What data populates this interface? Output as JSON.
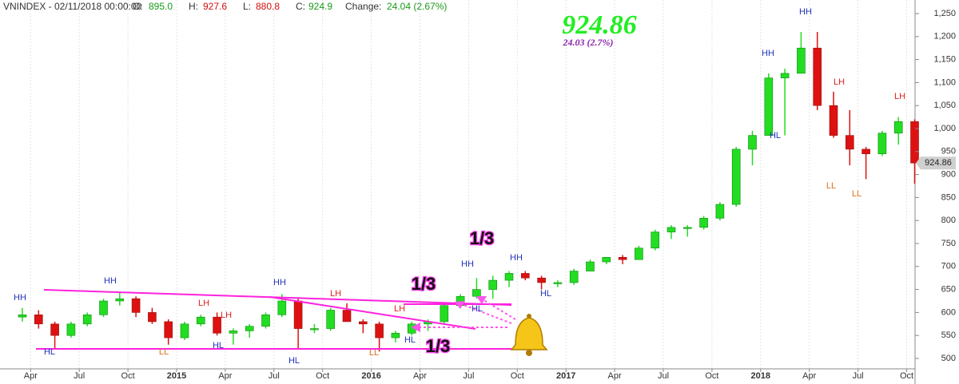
{
  "header": {
    "symbol": "VNINDEX - 02/11/2018 00:00:00",
    "o_label": "O:",
    "o": "895.0",
    "h_label": "H:",
    "h": "927.6",
    "l_label": "L:",
    "l": "880.8",
    "c_label": "C:",
    "c": "924.9",
    "change_label": "Change:",
    "change": "24.04 (2.67%)"
  },
  "quote": {
    "change": "24.03  (2.7%)"
  },
  "annotations": [
    {
      "text": "HH"
    },
    {
      "text": "HL"
    },
    {
      "text": "HH"
    },
    {
      "text": "LL"
    },
    {
      "text": "LH"
    },
    {
      "text": "LH"
    },
    {
      "text": "HL"
    },
    {
      "text": "HH"
    },
    {
      "text": "HL"
    },
    {
      "text": "LH"
    },
    {
      "text": "LL"
    },
    {
      "text": "LH"
    },
    {
      "text": "HL"
    },
    {
      "text": "HH"
    },
    {
      "text": "HH"
    },
    {
      "text": "HL"
    },
    {
      "text": "HL"
    },
    {
      "text": "HH"
    },
    {
      "text": "HH"
    },
    {
      "text": "HL"
    },
    {
      "text": "LH"
    },
    {
      "text": "LH"
    },
    {
      "text": "LL"
    },
    {
      "text": "LL"
    },
    {
      "text": "1/3"
    },
    {
      "text": "1/3"
    },
    {
      "text": "1/3"
    }
  ],
  "chart_data": {
    "type": "candlestick",
    "up_color": "#22dd22",
    "down_color": "#dd1111",
    "grid": true,
    "price_tag": 924.86,
    "categories": [
      null,
      "Apr",
      null,
      null,
      "Jul",
      null,
      null,
      "Oct",
      null,
      null,
      "2015",
      null,
      null,
      "Apr",
      null,
      null,
      "Jul",
      null,
      null,
      "Oct",
      null,
      null,
      "2016",
      null,
      null,
      "Apr",
      null,
      null,
      "Jul",
      null,
      null,
      "Oct",
      null,
      null,
      "2017",
      null,
      null,
      "Apr",
      null,
      null,
      "Jul",
      null,
      null,
      "Oct",
      null,
      null,
      "2018",
      null,
      null,
      "Apr",
      null,
      null,
      "Jul",
      null,
      null,
      "Oct"
    ],
    "open": [
      590,
      595,
      575,
      550,
      575,
      595,
      625,
      630,
      600,
      580,
      545,
      575,
      590,
      555,
      560,
      570,
      595,
      625,
      565,
      565,
      605,
      580,
      575,
      545,
      555,
      575,
      580,
      615,
      635,
      650,
      670,
      685,
      675,
      665,
      665,
      690,
      710,
      720,
      715,
      740,
      775,
      785,
      785,
      805,
      835,
      955,
      985,
      1110,
      1120,
      1175,
      1050,
      985,
      955,
      945,
      990,
      1015
    ],
    "high": [
      610,
      605,
      580,
      580,
      600,
      630,
      645,
      635,
      610,
      585,
      580,
      595,
      600,
      565,
      575,
      600,
      640,
      630,
      575,
      610,
      620,
      585,
      580,
      560,
      580,
      585,
      620,
      640,
      675,
      680,
      690,
      690,
      680,
      670,
      695,
      715,
      720,
      725,
      745,
      780,
      790,
      790,
      810,
      840,
      960,
      995,
      1120,
      1130,
      1210,
      1210,
      1080,
      1040,
      960,
      995,
      1025,
      1020
    ],
    "low": [
      580,
      565,
      520,
      545,
      570,
      590,
      615,
      590,
      575,
      530,
      540,
      570,
      550,
      530,
      545,
      565,
      590,
      520,
      555,
      560,
      580,
      555,
      515,
      535,
      550,
      560,
      575,
      610,
      630,
      630,
      655,
      670,
      650,
      655,
      660,
      690,
      705,
      705,
      715,
      735,
      760,
      765,
      780,
      800,
      830,
      920,
      985,
      985,
      1120,
      1040,
      980,
      920,
      890,
      940,
      965,
      880
    ],
    "close": [
      595,
      575,
      550,
      575,
      595,
      625,
      630,
      600,
      580,
      545,
      575,
      590,
      555,
      560,
      570,
      595,
      625,
      565,
      565,
      605,
      580,
      575,
      545,
      555,
      575,
      580,
      615,
      635,
      650,
      670,
      685,
      675,
      665,
      665,
      690,
      710,
      720,
      715,
      740,
      775,
      785,
      785,
      805,
      835,
      955,
      985,
      1110,
      1120,
      1175,
      1050,
      985,
      955,
      945,
      990,
      1015,
      925
    ],
    "ylim": [
      480,
      1270
    ],
    "yticks": [
      500,
      550,
      600,
      650,
      700,
      750,
      800,
      850,
      900,
      950,
      {
        "value": 1000,
        "label": "1,000"
      },
      {
        "value": 1050,
        "label": "1,050"
      },
      {
        "value": 1100,
        "label": "1,100"
      },
      {
        "value": 1150,
        "label": "1,150"
      },
      {
        "value": 1200,
        "label": "1,200"
      },
      {
        "value": 1250,
        "label": "1,250"
      }
    ]
  }
}
